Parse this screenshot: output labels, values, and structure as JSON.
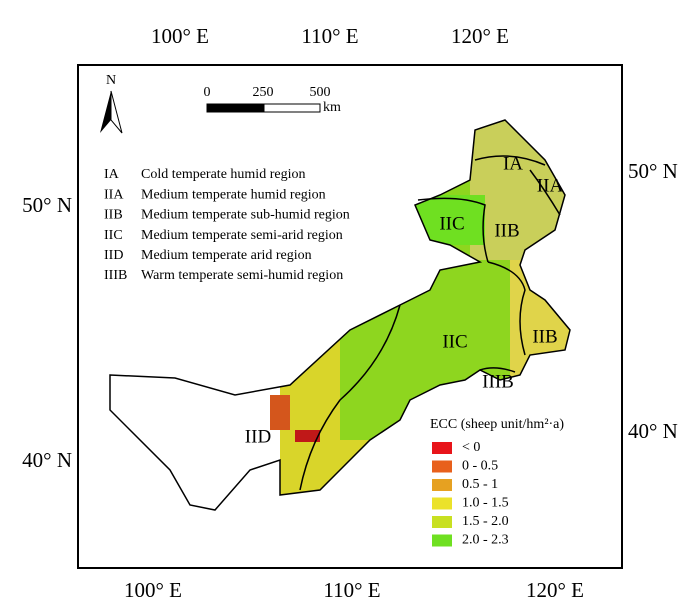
{
  "graticule": {
    "top": [
      "100° E",
      "110° E",
      "120° E"
    ],
    "bottom": [
      "100° E",
      "110° E",
      "120° E"
    ],
    "left": [
      "50° N",
      "40° N"
    ],
    "right": [
      "50° N",
      "40° N"
    ]
  },
  "north_arrow": "N",
  "scale_bar": {
    "ticks": [
      "0",
      "250",
      "500"
    ],
    "unit": "km"
  },
  "regions_legend": [
    {
      "code": "IA",
      "name": "Cold temperate humid region"
    },
    {
      "code": "IIA",
      "name": "Medium temperate humid region"
    },
    {
      "code": "IIB",
      "name": "Medium temperate sub-humid region"
    },
    {
      "code": "IIC",
      "name": "Medium temperate semi-arid region"
    },
    {
      "code": "IID",
      "name": "Medium temperate arid region"
    },
    {
      "code": "IIIB",
      "name": "Warm temperate semi-humid region"
    }
  ],
  "region_labels": [
    "IA",
    "IIA",
    "IIC",
    "IIB",
    "IIC",
    "IIB",
    "IIIB",
    "IID"
  ],
  "ecc_legend": {
    "title": "ECC (sheep unit/hm²·a)",
    "classes": [
      {
        "label": "< 0",
        "color": "#e8141a"
      },
      {
        "label": "0 - 0.5",
        "color": "#e8601c"
      },
      {
        "label": "0.5 - 1",
        "color": "#e6a121"
      },
      {
        "label": "1.0 - 1.5",
        "color": "#ebe22a"
      },
      {
        "label": "1.5 - 2.0",
        "color": "#c8e021"
      },
      {
        "label": "2.0 - 2.3",
        "color": "#6fe021"
      }
    ]
  }
}
